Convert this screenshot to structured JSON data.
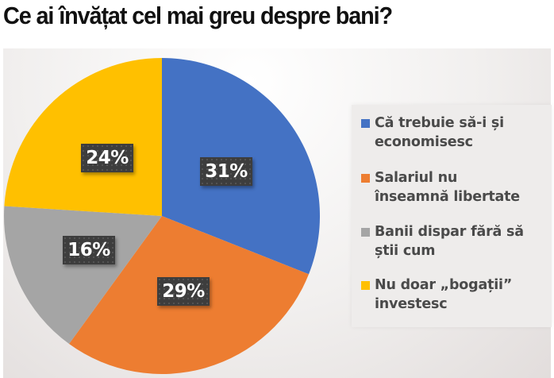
{
  "title": "Ce ai învățat cel mai greu despre bani?",
  "chart_data": {
    "type": "pie",
    "title": "Ce ai învățat cel mai greu despre bani?",
    "categories": [
      "Că trebuie să-i și economisesc",
      "Salariul nu înseamnă libertate",
      "Banii dispar fără să știi cum",
      "Nu doar „bogații” investesc"
    ],
    "values": [
      31,
      29,
      16,
      24
    ],
    "unit": "%",
    "colors": [
      "#4472C4",
      "#ED7D31",
      "#A5A5A5",
      "#FFC000"
    ],
    "start_angle": "12 o'clock",
    "direction": "clockwise",
    "legend_position": "right"
  },
  "labels": [
    "31%",
    "29%",
    "16%",
    "24%"
  ],
  "legend": {
    "items": [
      {
        "line1": "Că trebuie să-i și",
        "line2": "economisesc",
        "color": "#4472C4"
      },
      {
        "line1": "Salariul nu",
        "line2": "înseamnă libertate",
        "color": "#ED7D31"
      },
      {
        "line1": "Banii dispar fără să",
        "line2": "știi cum",
        "color": "#A5A5A5"
      },
      {
        "line1": "Nu doar „bogații”",
        "line2": "investesc",
        "color": "#FFC000"
      }
    ]
  }
}
